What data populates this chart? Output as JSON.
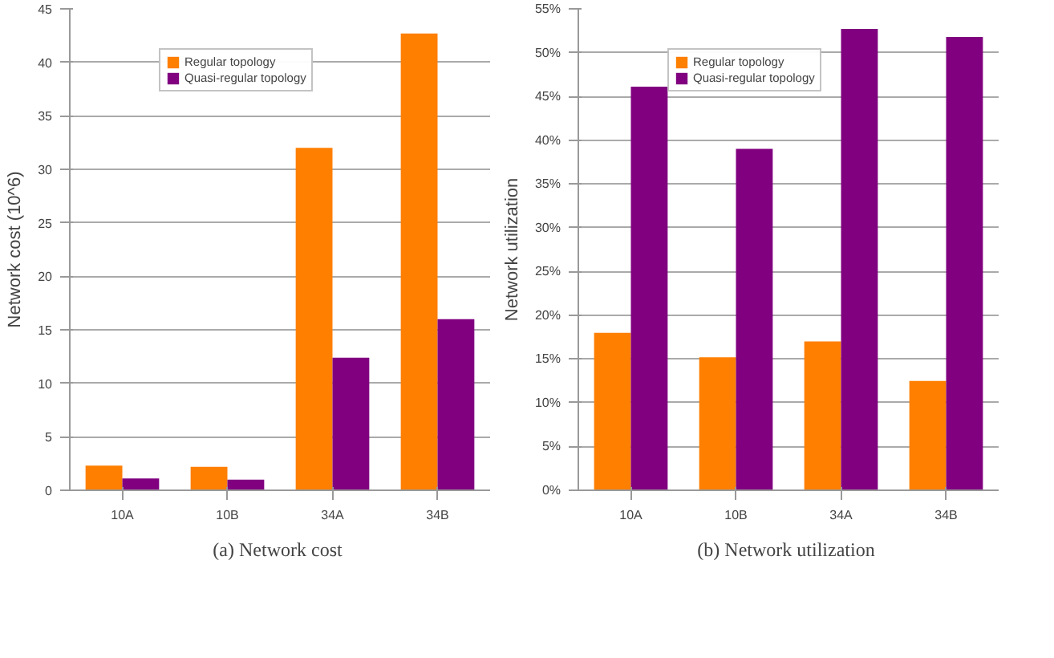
{
  "chart_data": [
    {
      "type": "bar",
      "title": "(a)  Network cost",
      "ylabel": "Network cost (10^6)",
      "categories": [
        "10A",
        "10B",
        "34A",
        "34B"
      ],
      "series": [
        {
          "name": "Regular topology",
          "color": "#ff7f00",
          "values": [
            2.3,
            2.2,
            32,
            42.7
          ]
        },
        {
          "name": "Quasi-regular topology",
          "color": "#800080",
          "values": [
            1.1,
            1.0,
            12.4,
            16
          ]
        }
      ],
      "ylim": [
        0,
        45
      ],
      "yticks": [
        0,
        5,
        10,
        15,
        20,
        25,
        30,
        35,
        40,
        45
      ],
      "grid": "y",
      "legend": "top"
    },
    {
      "type": "bar",
      "title": "(b)  Network utilization",
      "ylabel": "Network utilization",
      "categories": [
        "10A",
        "10B",
        "34A",
        "34B"
      ],
      "series": [
        {
          "name": "Regular topology",
          "color": "#ff7f00",
          "values": [
            18,
            15.2,
            17,
            12.5
          ]
        },
        {
          "name": "Quasi-regular topology",
          "color": "#800080",
          "values": [
            46.1,
            39,
            52.7,
            51.8
          ]
        }
      ],
      "ylim": [
        0,
        55
      ],
      "yticks": [
        {
          "value": 0,
          "label": "0%"
        },
        {
          "value": 5,
          "label": "5%"
        },
        {
          "value": 10,
          "label": "10%"
        },
        {
          "value": 15,
          "label": "15%"
        },
        {
          "value": 20,
          "label": "20%"
        },
        {
          "value": 25,
          "label": "25%"
        },
        {
          "value": 30,
          "label": "30%"
        },
        {
          "value": 35,
          "label": "35%"
        },
        {
          "value": 40,
          "label": "40%"
        },
        {
          "value": 45,
          "label": "45%"
        },
        {
          "value": 50,
          "label": "50%"
        },
        {
          "value": 55,
          "label": "55%"
        }
      ],
      "grid": "y",
      "legend": "top"
    }
  ]
}
